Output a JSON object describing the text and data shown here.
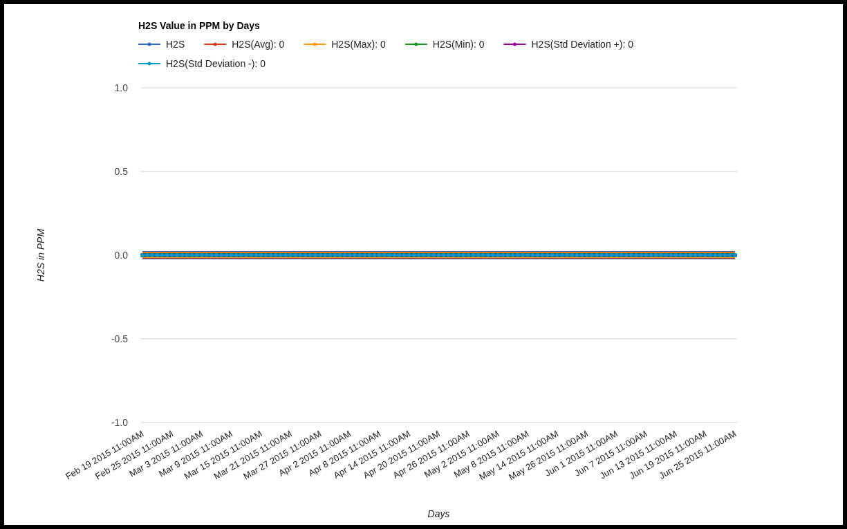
{
  "chart_data": {
    "type": "line",
    "title": "H2S Value in PPM by Days",
    "xlabel": "Days",
    "ylabel": "H2S in PPM",
    "categories": [
      "Feb 19 2015 11:00AM",
      null,
      null,
      null,
      null,
      null,
      "Feb 25 2015 11:00AM",
      null,
      null,
      null,
      null,
      null,
      "Mar 3 2015 11:00AM",
      null,
      null,
      null,
      null,
      null,
      "Mar 9 2015 11:00AM",
      null,
      null,
      null,
      null,
      null,
      "Mar 15 2015 11:00AM",
      null,
      null,
      null,
      null,
      null,
      "Mar 21 2015 11:00AM",
      null,
      null,
      null,
      null,
      null,
      "Mar 27 2015 11:00AM",
      null,
      null,
      null,
      null,
      null,
      "Apr 2 2015 11:00AM",
      null,
      null,
      null,
      null,
      null,
      "Apr 8 2015 11:00AM",
      null,
      null,
      null,
      null,
      null,
      "Apr 14 2015 11:00AM",
      null,
      null,
      null,
      null,
      null,
      "Apr 20 2015 11:00AM",
      null,
      null,
      null,
      null,
      null,
      "Apr 26 2015 11:00AM",
      null,
      null,
      null,
      null,
      null,
      "May 2 2015 11:00AM",
      null,
      null,
      null,
      null,
      null,
      "May 8 2015 11:00AM",
      null,
      null,
      null,
      null,
      null,
      "May 14 2015 11:00AM",
      null,
      null,
      null,
      null,
      null,
      "May 26 2015 11:00AM",
      null,
      null,
      null,
      null,
      null,
      "Jun 1 2015 11:00AM",
      null,
      null,
      null,
      null,
      null,
      "Jun 7 2015 11:00AM",
      null,
      null,
      null,
      null,
      null,
      "Jun 13 2015 11:00AM",
      null,
      null,
      null,
      null,
      null,
      "Jun 19 2015 11:00AM",
      null,
      null,
      null,
      null,
      null,
      "Jun 25 2015 11:00AM"
    ],
    "series": [
      {
        "name": "H2S",
        "color": "#3366cc",
        "values": [
          0,
          0,
          0,
          0,
          0,
          0,
          0,
          0,
          0,
          0,
          0,
          0,
          0,
          0,
          0,
          0,
          0,
          0,
          0,
          0,
          0,
          0,
          0,
          0,
          0,
          0,
          0,
          0,
          0,
          0,
          0,
          0,
          0,
          0,
          0,
          0,
          0,
          0,
          0,
          0,
          0,
          0,
          0,
          0,
          0,
          0,
          0,
          0,
          0,
          0,
          0,
          0,
          0,
          0,
          0,
          0,
          0,
          0,
          0,
          0,
          0,
          0,
          0,
          0,
          0,
          0,
          0,
          0,
          0,
          0,
          0,
          0,
          0,
          0,
          0,
          0,
          0,
          0,
          0,
          0,
          0,
          0,
          0,
          0,
          0,
          0,
          0,
          0,
          0,
          0,
          0,
          0,
          0,
          0,
          0,
          0,
          0,
          0,
          0,
          0,
          0,
          0,
          0,
          0,
          0,
          0,
          0,
          0,
          0,
          0,
          0,
          0,
          0,
          0,
          0,
          0,
          0,
          0,
          0,
          0,
          0
        ]
      },
      {
        "name": "H2S(Avg): 0",
        "color": "#dc3912",
        "values": [
          0,
          0,
          0,
          0,
          0,
          0,
          0,
          0,
          0,
          0,
          0,
          0,
          0,
          0,
          0,
          0,
          0,
          0,
          0,
          0,
          0,
          0,
          0,
          0,
          0,
          0,
          0,
          0,
          0,
          0,
          0,
          0,
          0,
          0,
          0,
          0,
          0,
          0,
          0,
          0,
          0,
          0,
          0,
          0,
          0,
          0,
          0,
          0,
          0,
          0,
          0,
          0,
          0,
          0,
          0,
          0,
          0,
          0,
          0,
          0,
          0,
          0,
          0,
          0,
          0,
          0,
          0,
          0,
          0,
          0,
          0,
          0,
          0,
          0,
          0,
          0,
          0,
          0,
          0,
          0,
          0,
          0,
          0,
          0,
          0,
          0,
          0,
          0,
          0,
          0,
          0,
          0,
          0,
          0,
          0,
          0,
          0,
          0,
          0,
          0,
          0,
          0,
          0,
          0,
          0,
          0,
          0,
          0,
          0,
          0,
          0,
          0,
          0,
          0,
          0,
          0,
          0,
          0,
          0,
          0,
          0
        ]
      },
      {
        "name": "H2S(Max): 0",
        "color": "#ff9900",
        "values": [
          0,
          0,
          0,
          0,
          0,
          0,
          0,
          0,
          0,
          0,
          0,
          0,
          0,
          0,
          0,
          0,
          0,
          0,
          0,
          0,
          0,
          0,
          0,
          0,
          0,
          0,
          0,
          0,
          0,
          0,
          0,
          0,
          0,
          0,
          0,
          0,
          0,
          0,
          0,
          0,
          0,
          0,
          0,
          0,
          0,
          0,
          0,
          0,
          0,
          0,
          0,
          0,
          0,
          0,
          0,
          0,
          0,
          0,
          0,
          0,
          0,
          0,
          0,
          0,
          0,
          0,
          0,
          0,
          0,
          0,
          0,
          0,
          0,
          0,
          0,
          0,
          0,
          0,
          0,
          0,
          0,
          0,
          0,
          0,
          0,
          0,
          0,
          0,
          0,
          0,
          0,
          0,
          0,
          0,
          0,
          0,
          0,
          0,
          0,
          0,
          0,
          0,
          0,
          0,
          0,
          0,
          0,
          0,
          0,
          0,
          0,
          0,
          0,
          0,
          0,
          0,
          0,
          0,
          0,
          0,
          0
        ]
      },
      {
        "name": "H2S(Min): 0",
        "color": "#109618",
        "values": [
          0,
          0,
          0,
          0,
          0,
          0,
          0,
          0,
          0,
          0,
          0,
          0,
          0,
          0,
          0,
          0,
          0,
          0,
          0,
          0,
          0,
          0,
          0,
          0,
          0,
          0,
          0,
          0,
          0,
          0,
          0,
          0,
          0,
          0,
          0,
          0,
          0,
          0,
          0,
          0,
          0,
          0,
          0,
          0,
          0,
          0,
          0,
          0,
          0,
          0,
          0,
          0,
          0,
          0,
          0,
          0,
          0,
          0,
          0,
          0,
          0,
          0,
          0,
          0,
          0,
          0,
          0,
          0,
          0,
          0,
          0,
          0,
          0,
          0,
          0,
          0,
          0,
          0,
          0,
          0,
          0,
          0,
          0,
          0,
          0,
          0,
          0,
          0,
          0,
          0,
          0,
          0,
          0,
          0,
          0,
          0,
          0,
          0,
          0,
          0,
          0,
          0,
          0,
          0,
          0,
          0,
          0,
          0,
          0,
          0,
          0,
          0,
          0,
          0,
          0,
          0,
          0,
          0,
          0,
          0,
          0
        ]
      },
      {
        "name": "H2S(Std Deviation +): 0",
        "color": "#990099",
        "values": [
          0,
          0,
          0,
          0,
          0,
          0,
          0,
          0,
          0,
          0,
          0,
          0,
          0,
          0,
          0,
          0,
          0,
          0,
          0,
          0,
          0,
          0,
          0,
          0,
          0,
          0,
          0,
          0,
          0,
          0,
          0,
          0,
          0,
          0,
          0,
          0,
          0,
          0,
          0,
          0,
          0,
          0,
          0,
          0,
          0,
          0,
          0,
          0,
          0,
          0,
          0,
          0,
          0,
          0,
          0,
          0,
          0,
          0,
          0,
          0,
          0,
          0,
          0,
          0,
          0,
          0,
          0,
          0,
          0,
          0,
          0,
          0,
          0,
          0,
          0,
          0,
          0,
          0,
          0,
          0,
          0,
          0,
          0,
          0,
          0,
          0,
          0,
          0,
          0,
          0,
          0,
          0,
          0,
          0,
          0,
          0,
          0,
          0,
          0,
          0,
          0,
          0,
          0,
          0,
          0,
          0,
          0,
          0,
          0,
          0,
          0,
          0,
          0,
          0,
          0,
          0,
          0,
          0,
          0,
          0,
          0
        ]
      },
      {
        "name": "H2S(Std Deviation -): 0",
        "color": "#0099c6",
        "values": [
          0,
          0,
          0,
          0,
          0,
          0,
          0,
          0,
          0,
          0,
          0,
          0,
          0,
          0,
          0,
          0,
          0,
          0,
          0,
          0,
          0,
          0,
          0,
          0,
          0,
          0,
          0,
          0,
          0,
          0,
          0,
          0,
          0,
          0,
          0,
          0,
          0,
          0,
          0,
          0,
          0,
          0,
          0,
          0,
          0,
          0,
          0,
          0,
          0,
          0,
          0,
          0,
          0,
          0,
          0,
          0,
          0,
          0,
          0,
          0,
          0,
          0,
          0,
          0,
          0,
          0,
          0,
          0,
          0,
          0,
          0,
          0,
          0,
          0,
          0,
          0,
          0,
          0,
          0,
          0,
          0,
          0,
          0,
          0,
          0,
          0,
          0,
          0,
          0,
          0,
          0,
          0,
          0,
          0,
          0,
          0,
          0,
          0,
          0,
          0,
          0,
          0,
          0,
          0,
          0,
          0,
          0,
          0,
          0,
          0,
          0,
          0,
          0,
          0,
          0,
          0,
          0,
          0,
          0,
          0,
          0
        ]
      }
    ],
    "ylim": [
      -1,
      1
    ],
    "yticks": [
      {
        "value": -1,
        "label": "-1.0"
      },
      {
        "value": -0.5,
        "label": "-0.5"
      },
      {
        "value": 0,
        "label": "0.0"
      },
      {
        "value": 0.5,
        "label": "0.5"
      },
      {
        "value": 1,
        "label": "1.0"
      }
    ],
    "grid": "y",
    "legend": "top",
    "marker": "circle",
    "line_style": "solid"
  }
}
